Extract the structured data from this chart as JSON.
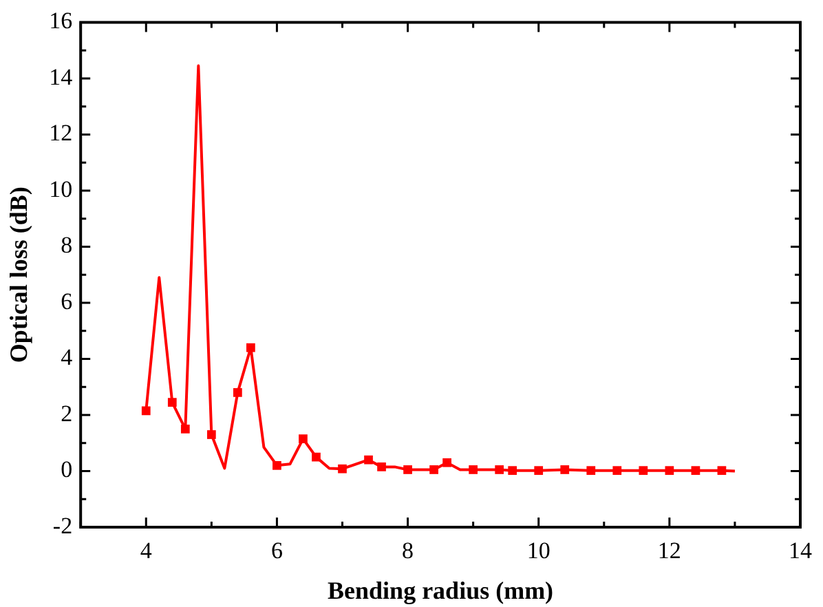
{
  "chart_data": {
    "type": "line",
    "xlabel": "Bending radius (mm)",
    "ylabel": "Optical loss (dB)",
    "xlim": [
      3,
      14
    ],
    "ylim": [
      -2,
      16
    ],
    "xticks": [
      {
        "value": 3,
        "label": null
      },
      4,
      {
        "value": 5,
        "label": null
      },
      6,
      {
        "value": 7,
        "label": null
      },
      8,
      {
        "value": 9,
        "label": null
      },
      10,
      {
        "value": 11,
        "label": null
      },
      12,
      {
        "value": 13,
        "label": null
      },
      14
    ],
    "yticks": [
      -2,
      {
        "value": -1,
        "label": null
      },
      0,
      {
        "value": 1,
        "label": null
      },
      2,
      {
        "value": 3,
        "label": null
      },
      4,
      {
        "value": 5,
        "label": null
      },
      6,
      {
        "value": 7,
        "label": null
      },
      8,
      {
        "value": 9,
        "label": null
      },
      10,
      {
        "value": 11,
        "label": null
      },
      12,
      {
        "value": 13,
        "label": null
      },
      14,
      {
        "value": 15,
        "label": null
      },
      16
    ],
    "grid": false,
    "legend": false,
    "series": [
      {
        "type": "line",
        "color": "#ff0000",
        "marker": "none",
        "line_style": "solid",
        "x": [
          4.0,
          4.2,
          4.4,
          4.6,
          4.8,
          5.0,
          5.2,
          5.4,
          5.6,
          5.8,
          6.0,
          6.2,
          6.4,
          6.6,
          6.8,
          7.0,
          7.4,
          7.6,
          7.8,
          8.0,
          8.4,
          8.6,
          8.8,
          9.0,
          9.4,
          9.6,
          10.0,
          10.4,
          10.8,
          11.2,
          11.6,
          12.0,
          12.4,
          12.8,
          13.0
        ],
        "values": [
          2.15,
          6.9,
          2.45,
          1.5,
          14.45,
          1.3,
          0.1,
          2.8,
          4.4,
          0.85,
          0.2,
          0.25,
          1.15,
          0.5,
          0.1,
          0.08,
          0.4,
          0.15,
          0.15,
          0.05,
          0.05,
          0.3,
          0.05,
          0.05,
          0.05,
          0.02,
          0.02,
          0.05,
          0.02,
          0.02,
          0.02,
          0.02,
          0.02,
          0.02,
          0.0
        ]
      },
      {
        "type": "scatter",
        "color": "#ff0000",
        "marker": "square",
        "x": [
          4.0,
          4.4,
          4.6,
          5.0,
          5.4,
          5.6,
          6.0,
          6.4,
          6.6,
          7.0,
          7.4,
          7.6,
          8.0,
          8.4,
          8.6,
          9.0,
          9.4,
          9.6,
          10.0,
          10.4,
          10.8,
          11.2,
          11.6,
          12.0,
          12.4,
          12.8
        ],
        "values": [
          2.15,
          2.45,
          1.5,
          1.3,
          2.8,
          4.4,
          0.2,
          1.15,
          0.5,
          0.08,
          0.4,
          0.15,
          0.05,
          0.05,
          0.3,
          0.05,
          0.05,
          0.02,
          0.02,
          0.05,
          0.02,
          0.02,
          0.02,
          0.02,
          0.02,
          0.02
        ]
      }
    ]
  }
}
